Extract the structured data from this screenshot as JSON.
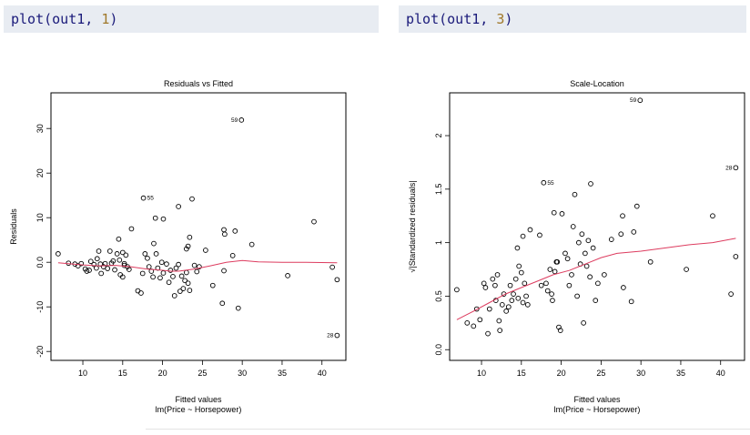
{
  "code_cells": [
    {
      "fn": "plot",
      "arg": "out1",
      "num": "1"
    },
    {
      "fn": "plot",
      "arg": "out1",
      "num": "3"
    }
  ],
  "chart_data": [
    {
      "type": "scatter",
      "title": "Residuals vs Fitted",
      "xlabel": "Fitted values",
      "sublabel": "lm(Price ~ Horsepower)",
      "ylabel": "Residuals",
      "xlim": [
        6,
        43
      ],
      "ylim": [
        -22,
        38
      ],
      "xticks": [
        10,
        15,
        20,
        25,
        30,
        35,
        40
      ],
      "yticks": [
        -20,
        -10,
        0,
        10,
        20,
        30
      ],
      "point_color": "#000000",
      "smooth_color": "#dd3c5f",
      "points": [
        [
          6.9,
          1.9
        ],
        [
          8.2,
          -0.2
        ],
        [
          9.0,
          -0.4
        ],
        [
          9.4,
          -0.8
        ],
        [
          9.8,
          -0.3
        ],
        [
          10.3,
          -1.5
        ],
        [
          10.5,
          -2.0
        ],
        [
          10.8,
          -1.8
        ],
        [
          11.0,
          0.2
        ],
        [
          11.4,
          -0.5
        ],
        [
          11.7,
          -1.3
        ],
        [
          11.8,
          0.8
        ],
        [
          12.0,
          2.5
        ],
        [
          12.2,
          -0.4
        ],
        [
          12.3,
          -2.5
        ],
        [
          12.6,
          -1.0
        ],
        [
          12.8,
          -0.3
        ],
        [
          13.1,
          -1.4
        ],
        [
          13.4,
          2.5
        ],
        [
          13.6,
          -0.2
        ],
        [
          13.8,
          0.3
        ],
        [
          14.0,
          -1.7
        ],
        [
          14.3,
          1.9
        ],
        [
          14.6,
          0.5
        ],
        [
          14.7,
          -2.8
        ],
        [
          15.0,
          -3.3
        ],
        [
          15.2,
          -0.7
        ],
        [
          15.4,
          1.6
        ],
        [
          15.6,
          -1.0
        ],
        [
          15.8,
          -1.6
        ],
        [
          16.1,
          7.5
        ],
        [
          14.5,
          5.2
        ],
        [
          15.0,
          2.2
        ],
        [
          15.2,
          -0.3
        ],
        [
          16.9,
          -6.4
        ],
        [
          17.3,
          -6.9
        ],
        [
          17.5,
          -2.5
        ],
        [
          17.8,
          1.9
        ],
        [
          18.1,
          0.9
        ],
        [
          18.3,
          -1.0
        ],
        [
          18.6,
          -2.0
        ],
        [
          18.8,
          -3.3
        ],
        [
          17.6,
          14.4
        ],
        [
          18.9,
          4.2
        ],
        [
          19.2,
          1.9
        ],
        [
          19.4,
          -1.3
        ],
        [
          19.7,
          -3.5
        ],
        [
          19.9,
          0.0
        ],
        [
          20.1,
          -2.4
        ],
        [
          19.1,
          9.9
        ],
        [
          20.1,
          9.7
        ],
        [
          20.5,
          -0.4
        ],
        [
          20.8,
          -4.5
        ],
        [
          21.0,
          -1.8
        ],
        [
          21.3,
          -3.2
        ],
        [
          21.5,
          -7.5
        ],
        [
          21.7,
          -1.3
        ],
        [
          22.0,
          -0.5
        ],
        [
          22.2,
          -6.5
        ],
        [
          22.4,
          -3.1
        ],
        [
          22.6,
          -5.9
        ],
        [
          22.8,
          -4.1
        ],
        [
          23.0,
          -2.3
        ],
        [
          23.2,
          -4.7
        ],
        [
          23.4,
          -6.3
        ],
        [
          22.0,
          12.5
        ],
        [
          23.7,
          14.2
        ],
        [
          23.4,
          5.6
        ],
        [
          23.2,
          3.6
        ],
        [
          23.0,
          3.0
        ],
        [
          24.0,
          -0.7
        ],
        [
          24.3,
          -2.1
        ],
        [
          24.6,
          -1.0
        ],
        [
          25.4,
          2.7
        ],
        [
          26.3,
          -5.2
        ],
        [
          27.5,
          -9.2
        ],
        [
          27.7,
          -1.9
        ],
        [
          27.8,
          6.3
        ],
        [
          27.7,
          7.3
        ],
        [
          28.8,
          1.5
        ],
        [
          29.1,
          7.0
        ],
        [
          29.5,
          -10.3
        ],
        [
          29.9,
          31.9
        ],
        [
          31.2,
          4.0
        ],
        [
          35.7,
          -3.0
        ],
        [
          39.0,
          9.1
        ],
        [
          41.3,
          -1.1
        ],
        [
          41.9,
          -3.9
        ],
        [
          41.9,
          -16.4
        ]
      ],
      "smooth": [
        [
          6.9,
          -0.1
        ],
        [
          10,
          -0.6
        ],
        [
          12,
          -0.8
        ],
        [
          14,
          -0.7
        ],
        [
          16,
          -1.0
        ],
        [
          18,
          -1.5
        ],
        [
          20,
          -1.8
        ],
        [
          21,
          -2.0
        ],
        [
          22,
          -2.0
        ],
        [
          24,
          -1.5
        ],
        [
          26,
          -0.8
        ],
        [
          28,
          0.0
        ],
        [
          30,
          0.4
        ],
        [
          32,
          0.1
        ],
        [
          35,
          0.0
        ],
        [
          38,
          0.0
        ],
        [
          41.9,
          -0.1
        ]
      ],
      "labels": [
        {
          "x": 29.9,
          "y": 31.9,
          "text": "59",
          "side": "left"
        },
        {
          "x": 17.6,
          "y": 14.4,
          "text": "55",
          "side": "right"
        },
        {
          "x": 41.9,
          "y": -16.4,
          "text": "28",
          "side": "left"
        }
      ]
    },
    {
      "type": "scatter",
      "title": "Scale-Location",
      "xlabel": "Fitted values",
      "sublabel": "lm(Price ~ Horsepower)",
      "ylabel": "√|Standardized residuals|",
      "xlim": [
        6,
        43
      ],
      "ylim": [
        -0.1,
        2.4
      ],
      "xticks": [
        10,
        15,
        20,
        25,
        30,
        35,
        40
      ],
      "yticks": [
        0.0,
        0.5,
        1.0,
        1.5,
        2.0
      ],
      "point_color": "#000000",
      "smooth_color": "#dd3c5f",
      "points": [
        [
          6.9,
          0.56
        ],
        [
          8.2,
          0.25
        ],
        [
          9.0,
          0.22
        ],
        [
          9.4,
          0.38
        ],
        [
          9.8,
          0.28
        ],
        [
          10.3,
          0.62
        ],
        [
          10.5,
          0.58
        ],
        [
          10.8,
          0.15
        ],
        [
          11.0,
          0.38
        ],
        [
          11.4,
          0.66
        ],
        [
          11.7,
          0.6
        ],
        [
          11.8,
          0.46
        ],
        [
          12.0,
          0.7
        ],
        [
          12.2,
          0.27
        ],
        [
          12.3,
          0.18
        ],
        [
          12.6,
          0.42
        ],
        [
          12.8,
          0.52
        ],
        [
          13.1,
          0.36
        ],
        [
          13.4,
          0.4
        ],
        [
          13.6,
          0.6
        ],
        [
          13.8,
          0.46
        ],
        [
          14.0,
          0.52
        ],
        [
          14.3,
          0.66
        ],
        [
          14.6,
          0.48
        ],
        [
          14.7,
          0.78
        ],
        [
          15.0,
          0.72
        ],
        [
          15.2,
          0.44
        ],
        [
          15.4,
          0.62
        ],
        [
          15.6,
          0.5
        ],
        [
          15.8,
          0.42
        ],
        [
          16.1,
          1.12
        ],
        [
          14.5,
          0.95
        ],
        [
          15.2,
          1.06
        ],
        [
          17.3,
          1.07
        ],
        [
          17.5,
          0.6
        ],
        [
          17.8,
          1.56
        ],
        [
          18.1,
          0.62
        ],
        [
          18.3,
          0.55
        ],
        [
          18.6,
          0.75
        ],
        [
          18.8,
          0.52
        ],
        [
          18.9,
          0.46
        ],
        [
          19.2,
          0.73
        ],
        [
          19.4,
          0.82
        ],
        [
          19.1,
          1.28
        ],
        [
          19.5,
          0.82
        ],
        [
          19.7,
          0.21
        ],
        [
          19.9,
          0.18
        ],
        [
          20.1,
          1.27
        ],
        [
          20.5,
          0.9
        ],
        [
          20.8,
          0.85
        ],
        [
          21.0,
          0.6
        ],
        [
          21.3,
          0.7
        ],
        [
          21.5,
          1.15
        ],
        [
          21.7,
          1.45
        ],
        [
          22.0,
          0.5
        ],
        [
          22.2,
          1.0
        ],
        [
          22.4,
          0.8
        ],
        [
          22.6,
          1.08
        ],
        [
          22.8,
          0.25
        ],
        [
          23.0,
          0.9
        ],
        [
          23.2,
          0.78
        ],
        [
          23.4,
          1.02
        ],
        [
          23.6,
          0.68
        ],
        [
          23.7,
          1.55
        ],
        [
          24.0,
          0.95
        ],
        [
          24.3,
          0.46
        ],
        [
          24.6,
          0.62
        ],
        [
          25.4,
          0.7
        ],
        [
          26.3,
          1.03
        ],
        [
          27.5,
          1.08
        ],
        [
          27.7,
          1.25
        ],
        [
          27.8,
          0.58
        ],
        [
          28.8,
          0.45
        ],
        [
          29.1,
          1.1
        ],
        [
          29.5,
          1.34
        ],
        [
          29.9,
          2.33
        ],
        [
          31.2,
          0.82
        ],
        [
          35.7,
          0.75
        ],
        [
          39.0,
          1.25
        ],
        [
          41.3,
          0.52
        ],
        [
          41.9,
          0.87
        ],
        [
          41.9,
          1.7
        ]
      ],
      "smooth": [
        [
          6.9,
          0.28
        ],
        [
          9,
          0.36
        ],
        [
          11,
          0.44
        ],
        [
          13,
          0.52
        ],
        [
          15,
          0.58
        ],
        [
          17,
          0.64
        ],
        [
          19,
          0.7
        ],
        [
          21,
          0.74
        ],
        [
          23,
          0.8
        ],
        [
          25,
          0.86
        ],
        [
          27,
          0.9
        ],
        [
          30,
          0.92
        ],
        [
          33,
          0.95
        ],
        [
          36,
          0.98
        ],
        [
          39,
          1.0
        ],
        [
          41.9,
          1.04
        ]
      ],
      "labels": [
        {
          "x": 29.9,
          "y": 2.33,
          "text": "59",
          "side": "left"
        },
        {
          "x": 17.8,
          "y": 1.56,
          "text": "55",
          "side": "right"
        },
        {
          "x": 41.9,
          "y": 1.7,
          "text": "28",
          "side": "left"
        }
      ]
    }
  ]
}
